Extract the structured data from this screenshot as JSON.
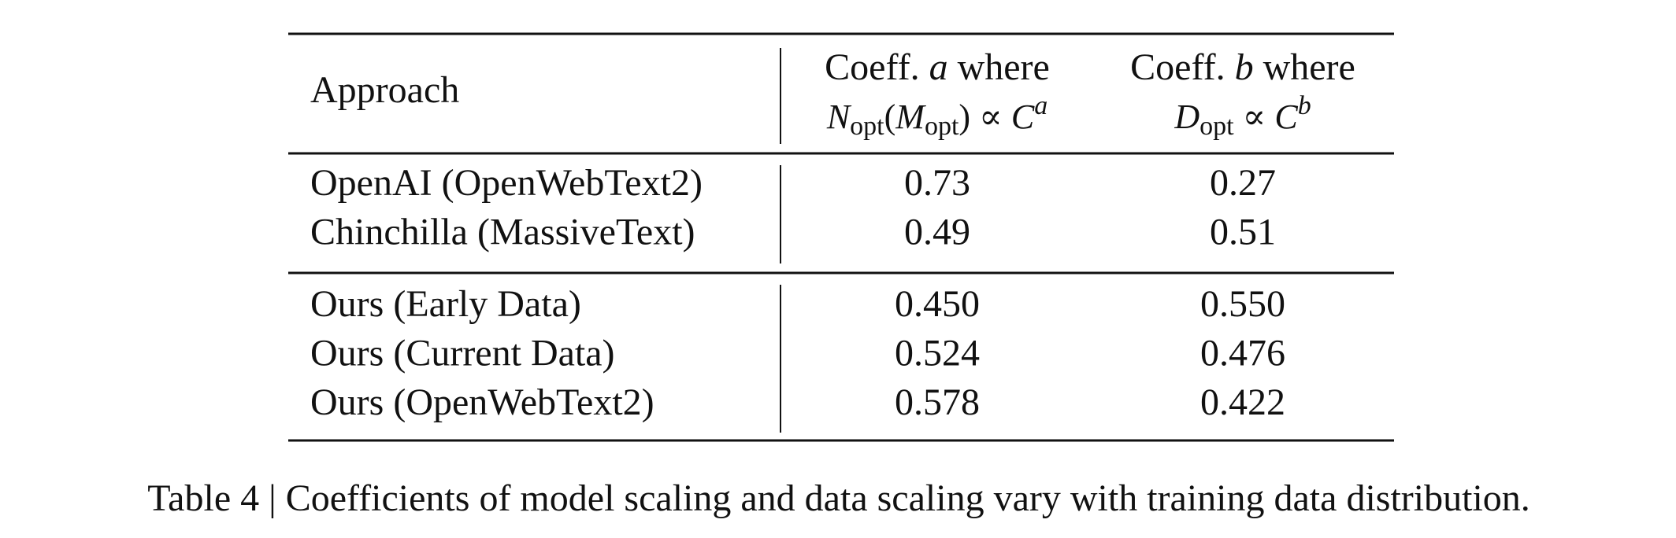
{
  "table": {
    "header": {
      "approach": "Approach",
      "coeff_a": {
        "line1": [
          "Coeff. ",
          "a",
          " where"
        ],
        "line2": [
          "N",
          "opt",
          "(",
          "M",
          "opt",
          ") ∝ ",
          "C",
          "a"
        ]
      },
      "coeff_b": {
        "line1": [
          "Coeff. ",
          "b",
          " where"
        ],
        "line2": [
          "D",
          "opt",
          " ∝ ",
          "C",
          "b"
        ]
      }
    },
    "groups": [
      [
        [
          "OpenAI (OpenWebText2)",
          "0.73",
          "0.27"
        ],
        [
          "Chinchilla (MassiveText)",
          "0.49",
          "0.51"
        ]
      ],
      [
        [
          "Ours (Early Data)",
          "0.450",
          "0.550"
        ],
        [
          "Ours (Current Data)",
          "0.524",
          "0.476"
        ],
        [
          "Ours (OpenWebText2)",
          "0.578",
          "0.422"
        ]
      ]
    ]
  },
  "caption": "Table 4 | Coefficients of model scaling and data scaling vary with training data distribution."
}
